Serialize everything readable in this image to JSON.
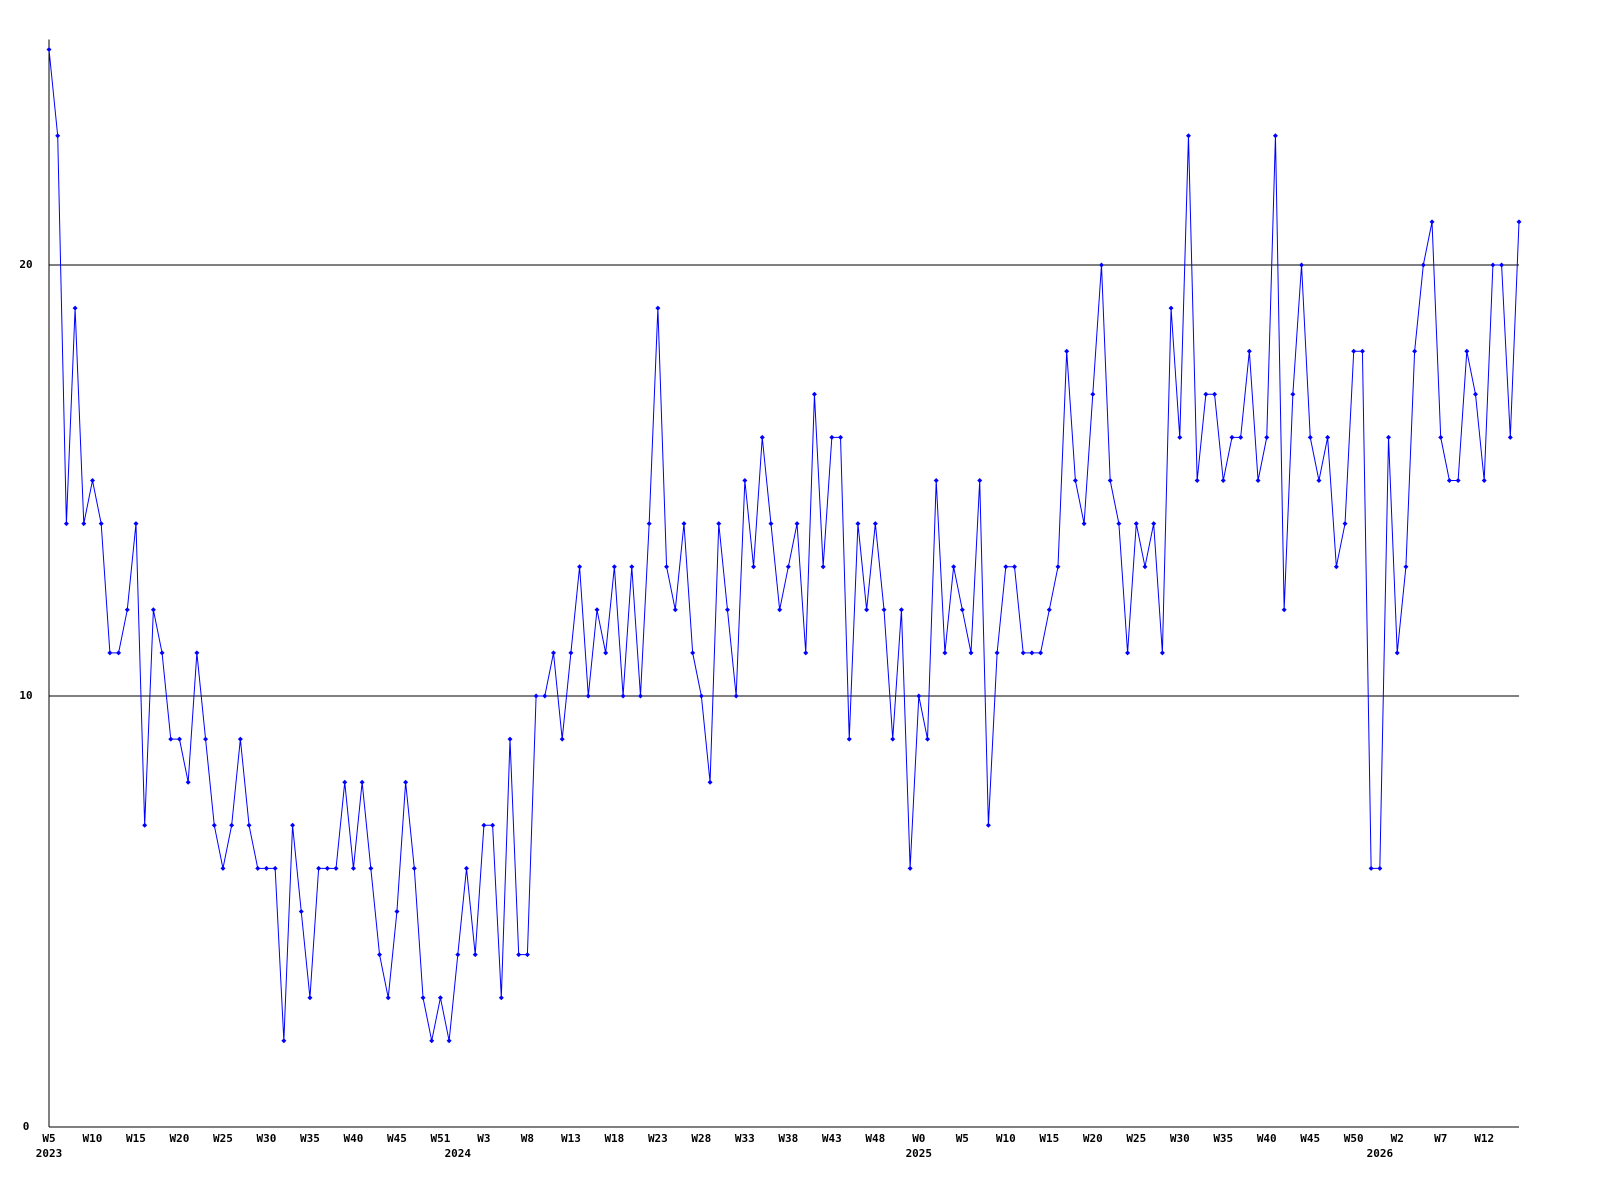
{
  "chart_data": {
    "type": "line",
    "categories": [
      "W5",
      null,
      null,
      null,
      null,
      "W10",
      null,
      null,
      null,
      null,
      "W15",
      null,
      null,
      null,
      null,
      "W20",
      null,
      null,
      null,
      null,
      "W25",
      null,
      null,
      null,
      null,
      "W30",
      null,
      null,
      null,
      null,
      "W35",
      null,
      null,
      null,
      null,
      "W40",
      null,
      null,
      null,
      null,
      "W45",
      null,
      null,
      null,
      null,
      "W51",
      null,
      null,
      null,
      null,
      "W3",
      null,
      null,
      null,
      null,
      "W8",
      null,
      null,
      null,
      null,
      "W13",
      null,
      null,
      null,
      null,
      "W18",
      null,
      null,
      null,
      null,
      "W23",
      null,
      null,
      null,
      null,
      "W28",
      null,
      null,
      null,
      null,
      "W33",
      null,
      null,
      null,
      null,
      "W38",
      null,
      null,
      null,
      null,
      "W43",
      null,
      null,
      null,
      null,
      "W48",
      null,
      null,
      null,
      null,
      "W0",
      null,
      null,
      null,
      null,
      "W5",
      null,
      null,
      null,
      null,
      "W10",
      null,
      null,
      null,
      null,
      "W15",
      null,
      null,
      null,
      null,
      "W20",
      null,
      null,
      null,
      null,
      "W25",
      null,
      null,
      null,
      null,
      "W30",
      null,
      null,
      null,
      null,
      "W35",
      null,
      null,
      null,
      null,
      "W40",
      null,
      null,
      null,
      null,
      "W45",
      null,
      null,
      null,
      null,
      "W50",
      null,
      null,
      null,
      null,
      "W2",
      null,
      null,
      null,
      null,
      "W7",
      null,
      null,
      null,
      null,
      "W12",
      null,
      null,
      null,
      null
    ],
    "years": [
      "2023",
      null,
      null,
      null,
      null,
      null,
      null,
      null,
      null,
      null,
      null,
      null,
      null,
      null,
      null,
      null,
      null,
      null,
      null,
      null,
      null,
      null,
      null,
      null,
      null,
      null,
      null,
      null,
      null,
      null,
      null,
      null,
      null,
      null,
      null,
      null,
      null,
      null,
      null,
      null,
      null,
      null,
      null,
      null,
      null,
      null,
      null,
      "2024",
      null,
      null,
      null,
      null,
      null,
      null,
      null,
      null,
      null,
      null,
      null,
      null,
      null,
      null,
      null,
      null,
      null,
      null,
      null,
      null,
      null,
      null,
      null,
      null,
      null,
      null,
      null,
      null,
      null,
      null,
      null,
      null,
      null,
      null,
      null,
      null,
      null,
      null,
      null,
      null,
      null,
      null,
      null,
      null,
      null,
      null,
      null,
      null,
      null,
      null,
      null,
      null,
      "2025",
      null,
      null,
      null,
      null,
      null,
      null,
      null,
      null,
      null,
      null,
      null,
      null,
      null,
      null,
      null,
      null,
      null,
      null,
      null,
      null,
      null,
      null,
      null,
      null,
      null,
      null,
      null,
      null,
      null,
      null,
      null,
      null,
      null,
      null,
      null,
      null,
      null,
      null,
      null,
      null,
      null,
      null,
      null,
      null,
      null,
      null,
      null,
      null,
      null,
      null,
      null,
      null,
      "2026",
      null,
      null,
      null,
      null,
      null,
      null,
      null,
      null,
      null,
      null,
      null,
      null,
      null,
      null,
      null,
      null
    ],
    "values": [
      25,
      23,
      14,
      19,
      14,
      15,
      14,
      11,
      11,
      12,
      14,
      7,
      12,
      11,
      9,
      9,
      8,
      11,
      9,
      7,
      6,
      7,
      9,
      7,
      6,
      6,
      6,
      2,
      7,
      5,
      3,
      6,
      6,
      6,
      8,
      6,
      8,
      6,
      4,
      3,
      5,
      8,
      6,
      3,
      2,
      3,
      2,
      4,
      6,
      4,
      7,
      7,
      3,
      9,
      4,
      4,
      10,
      10,
      11,
      9,
      11,
      13,
      10,
      12,
      11,
      13,
      10,
      13,
      10,
      14,
      19,
      13,
      12,
      14,
      11,
      10,
      8,
      14,
      12,
      10,
      15,
      13,
      16,
      14,
      12,
      13,
      14,
      11,
      17,
      13,
      16,
      16,
      9,
      14,
      12,
      14,
      12,
      9,
      12,
      6,
      10,
      9,
      15,
      11,
      13,
      12,
      11,
      15,
      7,
      11,
      13,
      13,
      11,
      11,
      11,
      12,
      13,
      18,
      15,
      14,
      17,
      20,
      15,
      14,
      11,
      14,
      13,
      14,
      11,
      19,
      16,
      23,
      15,
      17,
      17,
      15,
      16,
      16,
      18,
      15,
      16,
      23,
      12,
      17,
      20,
      16,
      15,
      16,
      13,
      14,
      18,
      18,
      6,
      6,
      16,
      11,
      13,
      18,
      20,
      21,
      16,
      15,
      15,
      18,
      17,
      15,
      20,
      20,
      16,
      21
    ],
    "color": "#0000ff",
    "ylim": [
      0,
      25
    ],
    "yticks": [
      0,
      10,
      20
    ],
    "grid": true
  }
}
